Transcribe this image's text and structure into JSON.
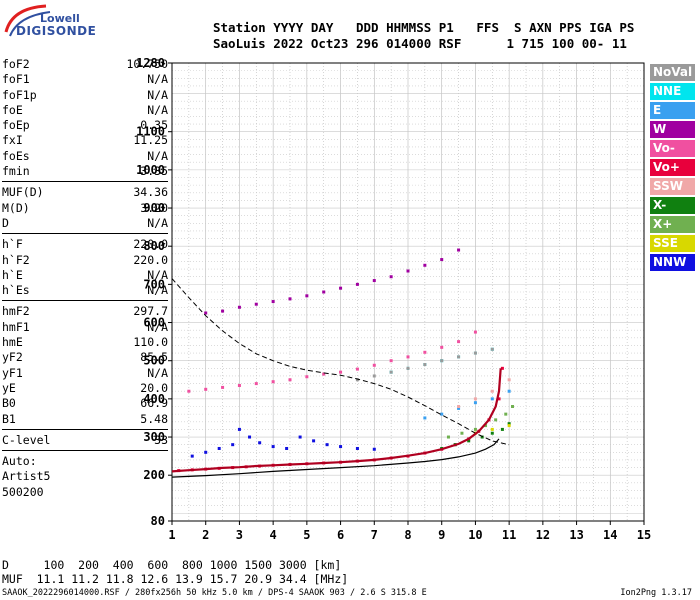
{
  "logo": {
    "line1": "Lowell",
    "line2": "DIGISONDE"
  },
  "header": {
    "row1": "Station YYYY DAY   DDD HHMMSS P1   FFS  S AXN PPS IGA PS",
    "row2": "SaoLuis 2022 Oct23 296 014000 RSF      1 715 100 00- 11"
  },
  "params": [
    {
      "name": "foF2",
      "value": "10.750"
    },
    {
      "name": "foF1",
      "value": "N/A"
    },
    {
      "name": "foF1p",
      "value": "N/A"
    },
    {
      "name": "foE",
      "value": "N/A"
    },
    {
      "name": "foEp",
      "value": "0.35"
    },
    {
      "name": "fxI",
      "value": "11.25"
    },
    {
      "name": "foEs",
      "value": "N/A"
    },
    {
      "name": "fmin",
      "value": "3.35"
    },
    {
      "sep": true
    },
    {
      "name": "MUF(D)",
      "value": "34.36"
    },
    {
      "name": "M(D)",
      "value": "3.20"
    },
    {
      "name": "D",
      "value": "N/A"
    },
    {
      "sep": true
    },
    {
      "name": "h`F",
      "value": "220.0"
    },
    {
      "name": "h`F2",
      "value": "220.0"
    },
    {
      "name": "h`E",
      "value": "N/A"
    },
    {
      "name": "h`Es",
      "value": "N/A"
    },
    {
      "sep": true
    },
    {
      "name": "hmF2",
      "value": "297.7"
    },
    {
      "name": "hmF1",
      "value": "N/A"
    },
    {
      "name": "hmE",
      "value": "110.0"
    },
    {
      "name": "yF2",
      "value": "85.5"
    },
    {
      "name": "yF1",
      "value": "N/A"
    },
    {
      "name": "yE",
      "value": "20.0"
    },
    {
      "name": "B0",
      "value": "66.9"
    },
    {
      "name": "B1",
      "value": "5.48"
    },
    {
      "sep": true
    },
    {
      "name": "C-level",
      "value": "33"
    },
    {
      "sep": true
    },
    {
      "name": "Auto:",
      "value": ""
    },
    {
      "name": "Artist5",
      "value": ""
    },
    {
      "name": "500200",
      "value": ""
    }
  ],
  "legend": [
    {
      "label": "NoVal",
      "color": "#9a9a9a"
    },
    {
      "label": "NNE",
      "color": "#00e5ee"
    },
    {
      "label": "E",
      "color": "#3aa0f0"
    },
    {
      "label": "W",
      "color": "#a000a0"
    },
    {
      "label": "Vo-",
      "color": "#f050a0"
    },
    {
      "label": "Vo+",
      "color": "#e8003c"
    },
    {
      "label": "SSW",
      "color": "#f0a8a8"
    },
    {
      "label": "X-",
      "color": "#108010"
    },
    {
      "label": "X+",
      "color": "#70b050"
    },
    {
      "label": "SSE",
      "color": "#d8d800"
    },
    {
      "label": "NNW",
      "color": "#1010e0"
    }
  ],
  "footer": {
    "d_row": "D     100  200  400  600  800 1000 1500 3000 [km]",
    "muf_row": "MUF  11.1 11.2 11.8 12.6 13.9 15.7 20.9 34.4 [MHz]",
    "file": "SAAOK_2022296014000.RSF / 280fx256h 50 kHz 5.0 km / DPS-4 SAAOK 903 / 2.6 S 315.8 E",
    "version": "Ion2Png 1.3.17"
  },
  "chart_data": {
    "type": "scatter",
    "title": "",
    "xlabel": "",
    "ylabel": "",
    "xlim": [
      1,
      15
    ],
    "ylim": [
      80,
      1280
    ],
    "x_ticks": [
      "1",
      "2",
      "3",
      "4",
      "5",
      "6",
      "7",
      "8",
      "9",
      "10",
      "11",
      "12",
      "13",
      "14",
      "15"
    ],
    "y_ticks": [
      "80",
      "200",
      "300",
      "400",
      "500",
      "600",
      "700",
      "800",
      "900",
      "1000",
      "1100",
      "1280"
    ],
    "grid": true,
    "series": [
      {
        "name": "Vo+",
        "color": "#e8003c",
        "x": [
          1.2,
          1.6,
          2.0,
          2.4,
          2.8,
          3.2,
          3.6,
          4.0,
          4.5,
          5.0,
          5.5,
          6.0,
          6.5,
          7.0,
          7.5,
          8.0,
          8.5,
          9.0,
          9.4,
          9.8,
          10.1,
          10.4,
          10.7,
          10.8
        ],
        "y": [
          212,
          214,
          216,
          218,
          220,
          222,
          224,
          226,
          228,
          230,
          232,
          234,
          237,
          240,
          245,
          250,
          258,
          268,
          280,
          295,
          315,
          345,
          400,
          480
        ]
      },
      {
        "name": "Vo-",
        "color": "#f050a0",
        "x": [
          1.5,
          2.0,
          2.5,
          3.0,
          3.5,
          4.0,
          4.5,
          5.0,
          5.5,
          6.0,
          6.5,
          7.0,
          7.5,
          8.0,
          8.5,
          9.0,
          9.5,
          10.0
        ],
        "y": [
          420,
          425,
          430,
          435,
          440,
          445,
          450,
          458,
          465,
          470,
          478,
          488,
          500,
          510,
          522,
          535,
          550,
          575
        ]
      },
      {
        "name": "W",
        "color": "#a000a0",
        "x": [
          2.0,
          2.5,
          3.0,
          3.5,
          4.0,
          4.5,
          5.0,
          5.5,
          6.0,
          6.5,
          7.0,
          7.5,
          8.0,
          8.5,
          9.0,
          9.5
        ],
        "y": [
          625,
          630,
          640,
          648,
          655,
          662,
          670,
          680,
          690,
          700,
          710,
          720,
          735,
          750,
          765,
          790
        ]
      },
      {
        "name": "NNW",
        "color": "#1010e0",
        "x": [
          1.6,
          2.0,
          2.4,
          2.8,
          3.0,
          3.3,
          3.6,
          4.0,
          4.4,
          4.8,
          5.2,
          5.6,
          6.0,
          6.5,
          7.0
        ],
        "y": [
          250,
          260,
          270,
          280,
          320,
          300,
          285,
          275,
          270,
          300,
          290,
          280,
          275,
          270,
          268
        ]
      },
      {
        "name": "X-",
        "color": "#108010",
        "x": [
          9.0,
          9.4,
          9.8,
          10.2,
          10.5,
          10.8,
          11.0
        ],
        "y": [
          270,
          280,
          290,
          300,
          310,
          320,
          335
        ]
      },
      {
        "name": "X+",
        "color": "#70b050",
        "x": [
          9.2,
          9.6,
          10.0,
          10.3,
          10.6,
          10.9,
          11.1
        ],
        "y": [
          300,
          310,
          320,
          330,
          345,
          360,
          380
        ]
      },
      {
        "name": "NNE",
        "color": "#00e5ee",
        "x": [
          7.5,
          8.0,
          8.5,
          9.0,
          9.5,
          10.0,
          10.5
        ],
        "y": [
          470,
          480,
          490,
          500,
          510,
          520,
          530
        ]
      },
      {
        "name": "E",
        "color": "#3aa0f0",
        "x": [
          8.5,
          9.0,
          9.5,
          10.0,
          10.5,
          11.0
        ],
        "y": [
          350,
          360,
          375,
          390,
          400,
          420
        ]
      },
      {
        "name": "SSW",
        "color": "#f0a8a8",
        "x": [
          9.5,
          10.0,
          10.5,
          11.0
        ],
        "y": [
          380,
          400,
          420,
          450
        ]
      },
      {
        "name": "SSE",
        "color": "#d8d800",
        "x": [
          10.0,
          10.5,
          11.0
        ],
        "y": [
          310,
          320,
          330
        ]
      },
      {
        "name": "NoVal",
        "color": "#9a9a9a",
        "x": [
          6.5,
          7.0,
          7.5,
          8.0,
          8.5,
          9.0,
          9.5,
          10.0,
          10.5
        ],
        "y": [
          450,
          460,
          470,
          480,
          490,
          500,
          510,
          520,
          530
        ]
      }
    ],
    "curves": {
      "trace": {
        "color": "#b00020",
        "x": [
          1.0,
          1.5,
          2.0,
          2.5,
          3.0,
          3.5,
          4.0,
          4.5,
          5.0,
          5.5,
          6.0,
          6.5,
          7.0,
          7.5,
          8.0,
          8.5,
          9.0,
          9.5,
          9.8,
          10.1,
          10.4,
          10.6,
          10.7,
          10.75
        ],
        "y": [
          210,
          213,
          216,
          219,
          221,
          224,
          226,
          228,
          230,
          232,
          234,
          237,
          240,
          245,
          251,
          258,
          268,
          282,
          295,
          315,
          345,
          380,
          420,
          480
        ]
      },
      "profile": {
        "color": "#000000",
        "x": [
          1.0,
          2.0,
          3.0,
          4.0,
          5.0,
          6.0,
          7.0,
          8.0,
          8.5,
          9.0,
          9.5,
          10.0,
          10.3,
          10.55,
          10.7
        ],
        "y": [
          195,
          199,
          204,
          210,
          215,
          220,
          225,
          232,
          236,
          241,
          248,
          258,
          268,
          280,
          295
        ]
      },
      "muf_dashed": {
        "color": "#000000",
        "x": [
          1.0,
          1.5,
          2.0,
          2.5,
          3.0,
          3.5,
          4.0,
          4.5,
          5.0,
          5.5,
          6.0,
          6.5,
          7.0,
          7.5,
          8.0,
          8.5,
          9.0,
          9.5,
          10.0,
          10.5,
          11.0
        ],
        "y": [
          715,
          665,
          618,
          578,
          545,
          518,
          500,
          485,
          475,
          468,
          462,
          452,
          440,
          425,
          405,
          382,
          358,
          335,
          310,
          290,
          280
        ]
      }
    }
  }
}
